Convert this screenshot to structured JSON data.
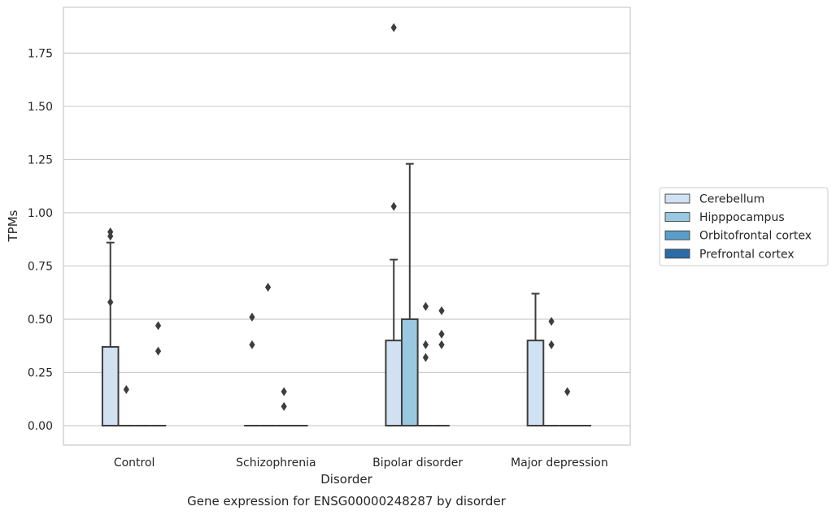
{
  "caption": "Gene expression for ENSG00000248287 by disorder",
  "chart_data": {
    "type": "box",
    "xlabel": "Disorder",
    "ylabel": "TPMs",
    "ylim": [
      -0.09,
      1.97
    ],
    "yticks": [
      "0.00",
      "0.25",
      "0.50",
      "0.75",
      "1.00",
      "1.25",
      "1.50",
      "1.75"
    ],
    "ytick_values": [
      0,
      0.25,
      0.5,
      0.75,
      1.0,
      1.25,
      1.5,
      1.75
    ],
    "grid": "horizontal",
    "legend_position": "right",
    "categories": [
      "Control",
      "Schizophrenia",
      "Bipolar disorder",
      "Major depression"
    ],
    "series": [
      {
        "name": "Cerebellum",
        "color": "#d0e1f2",
        "boxes": [
          {
            "q1": 0,
            "median": 0,
            "q3": 0.37,
            "whisker_low": 0,
            "whisker_high": 0.86,
            "outliers": [
              0.91,
              0.89,
              0.58
            ]
          },
          {
            "q1": 0,
            "median": 0,
            "q3": 0,
            "whisker_low": 0,
            "whisker_high": 0,
            "outliers": [
              0.51,
              0.38
            ]
          },
          {
            "q1": 0,
            "median": 0,
            "q3": 0.4,
            "whisker_low": 0,
            "whisker_high": 0.78,
            "outliers": [
              1.87,
              1.03
            ]
          },
          {
            "q1": 0,
            "median": 0,
            "q3": 0.4,
            "whisker_low": 0,
            "whisker_high": 0.62,
            "outliers": []
          }
        ]
      },
      {
        "name": "Hipppocampus",
        "color": "#9ac8e0",
        "boxes": [
          {
            "q1": 0,
            "median": 0,
            "q3": 0,
            "whisker_low": 0,
            "whisker_high": 0,
            "outliers": [
              0.17
            ]
          },
          {
            "q1": 0,
            "median": 0,
            "q3": 0,
            "whisker_low": 0,
            "whisker_high": 0,
            "outliers": [
              0.65
            ]
          },
          {
            "q1": 0,
            "median": 0,
            "q3": 0.5,
            "whisker_low": 0,
            "whisker_high": 1.23,
            "outliers": []
          },
          {
            "q1": 0,
            "median": 0,
            "q3": 0,
            "whisker_low": 0,
            "whisker_high": 0,
            "outliers": [
              0.49,
              0.38
            ]
          }
        ]
      },
      {
        "name": "Orbitofrontal cortex",
        "color": "#5a9ec9",
        "boxes": [
          {
            "q1": 0,
            "median": 0,
            "q3": 0,
            "whisker_low": 0,
            "whisker_high": 0,
            "outliers": []
          },
          {
            "q1": 0,
            "median": 0,
            "q3": 0,
            "whisker_low": 0,
            "whisker_high": 0,
            "outliers": [
              0.16,
              0.09
            ]
          },
          {
            "q1": 0,
            "median": 0,
            "q3": 0,
            "whisker_low": 0,
            "whisker_high": 0,
            "outliers": [
              0.56,
              0.38,
              0.32
            ]
          },
          {
            "q1": 0,
            "median": 0,
            "q3": 0,
            "whisker_low": 0,
            "whisker_high": 0,
            "outliers": [
              0.16
            ]
          }
        ]
      },
      {
        "name": "Prefrontal cortex",
        "color": "#2b6ca8",
        "boxes": [
          {
            "q1": 0,
            "median": 0,
            "q3": 0,
            "whisker_low": 0,
            "whisker_high": 0,
            "outliers": [
              0.47,
              0.35
            ]
          },
          {
            "q1": 0,
            "median": 0,
            "q3": 0,
            "whisker_low": 0,
            "whisker_high": 0,
            "outliers": []
          },
          {
            "q1": 0,
            "median": 0,
            "q3": 0,
            "whisker_low": 0,
            "whisker_high": 0,
            "outliers": [
              0.54,
              0.43,
              0.38
            ]
          },
          {
            "q1": 0,
            "median": 0,
            "q3": 0,
            "whisker_low": 0,
            "whisker_high": 0,
            "outliers": []
          }
        ]
      }
    ]
  }
}
